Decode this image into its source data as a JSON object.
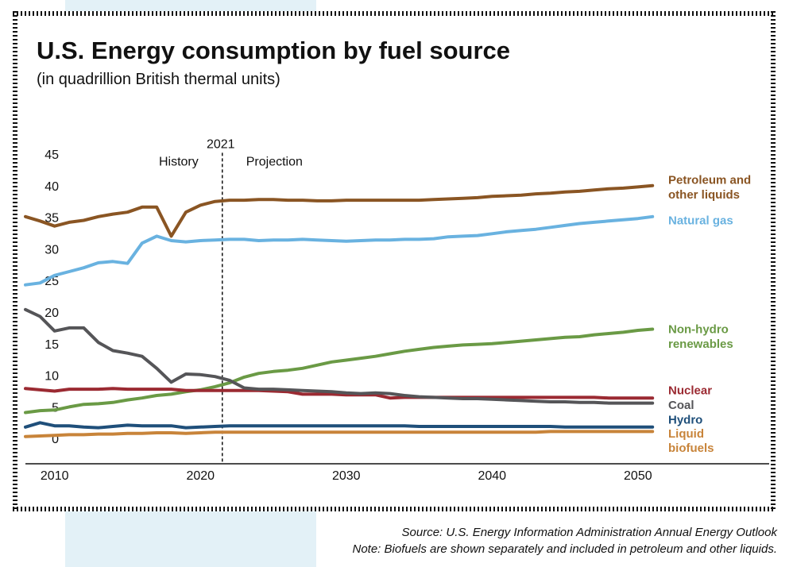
{
  "title": "U.S. Energy consumption by fuel source",
  "subtitle": "(in quadrillion British thermal units)",
  "source_note": "Source: U.S. Energy Information Administration Annual Energy Outlook",
  "biofuel_note": "Note: Biofuels are shown separately and included in petroleum and other liquids.",
  "chart_data": {
    "type": "line",
    "xlim": [
      2008,
      2059
    ],
    "ylim": [
      -4,
      46
    ],
    "yticks": [
      0,
      5,
      10,
      15,
      20,
      25,
      30,
      35,
      40,
      45
    ],
    "xticks": [
      2010,
      2020,
      2030,
      2040,
      2050
    ],
    "divider": {
      "year": 2021.5,
      "label": "2021",
      "left_label": "History",
      "right_label": "Projection"
    },
    "x": [
      2008,
      2009,
      2010,
      2011,
      2012,
      2013,
      2014,
      2015,
      2016,
      2017,
      2018,
      2019,
      2020,
      2021,
      2022,
      2023,
      2024,
      2025,
      2026,
      2027,
      2028,
      2029,
      2030,
      2031,
      2032,
      2033,
      2034,
      2035,
      2036,
      2037,
      2038,
      2039,
      2040,
      2041,
      2042,
      2043,
      2044,
      2045,
      2046,
      2047,
      2048,
      2049,
      2050,
      2051
    ],
    "series": [
      {
        "name": "Petroleum and other liquids",
        "label_lines": [
          "Petroleum and",
          "other liquids"
        ],
        "color": "#8a5523",
        "values": [
          35.1,
          34.4,
          33.6,
          34.2,
          34.5,
          35.1,
          35.5,
          35.8,
          36.6,
          36.6,
          32.0,
          35.8,
          36.9,
          37.5,
          37.7,
          37.7,
          37.8,
          37.8,
          37.7,
          37.7,
          37.6,
          37.6,
          37.7,
          37.7,
          37.7,
          37.7,
          37.7,
          37.7,
          37.8,
          37.9,
          38.0,
          38.1,
          38.3,
          38.4,
          38.5,
          38.7,
          38.8,
          39.0,
          39.1,
          39.3,
          39.5,
          39.6,
          39.8,
          40.0
        ]
      },
      {
        "name": "Natural gas",
        "label_lines": [
          "Natural gas"
        ],
        "color": "#69b2e0",
        "values": [
          24.3,
          24.6,
          25.8,
          26.4,
          27.0,
          27.8,
          28.0,
          27.7,
          30.9,
          32.0,
          31.3,
          31.1,
          31.3,
          31.4,
          31.5,
          31.5,
          31.3,
          31.4,
          31.4,
          31.5,
          31.4,
          31.3,
          31.2,
          31.3,
          31.4,
          31.4,
          31.5,
          31.5,
          31.6,
          31.9,
          32.0,
          32.1,
          32.4,
          32.7,
          32.9,
          33.1,
          33.4,
          33.7,
          34.0,
          34.2,
          34.4,
          34.6,
          34.8,
          35.1
        ]
      },
      {
        "name": "Non-hydro renewables",
        "label_lines": [
          "Non-hydro",
          "renewables"
        ],
        "color": "#6a9a45",
        "values": [
          4.1,
          4.4,
          4.5,
          5.0,
          5.4,
          5.5,
          5.7,
          6.1,
          6.4,
          6.8,
          7.0,
          7.4,
          7.7,
          8.2,
          8.8,
          9.7,
          10.3,
          10.6,
          10.8,
          11.1,
          11.6,
          12.1,
          12.4,
          12.7,
          13.0,
          13.4,
          13.8,
          14.1,
          14.4,
          14.6,
          14.8,
          14.9,
          15.0,
          15.2,
          15.4,
          15.6,
          15.8,
          16.0,
          16.1,
          16.4,
          16.6,
          16.8,
          17.1,
          17.3
        ]
      },
      {
        "name": "Nuclear",
        "label_lines": [
          "Nuclear"
        ],
        "color": "#9b2a32",
        "values": [
          7.9,
          7.7,
          7.5,
          7.8,
          7.8,
          7.8,
          7.9,
          7.8,
          7.8,
          7.8,
          7.8,
          7.6,
          7.6,
          7.6,
          7.6,
          7.6,
          7.6,
          7.5,
          7.4,
          7.0,
          7.0,
          7.0,
          6.9,
          6.9,
          6.9,
          6.4,
          6.5,
          6.5,
          6.5,
          6.5,
          6.5,
          6.5,
          6.5,
          6.5,
          6.5,
          6.5,
          6.5,
          6.5,
          6.5,
          6.5,
          6.4,
          6.4,
          6.4,
          6.4
        ]
      },
      {
        "name": "Coal",
        "label_lines": [
          "Coal"
        ],
        "color": "#555558",
        "values": [
          20.4,
          19.3,
          17.0,
          17.5,
          17.5,
          15.2,
          13.9,
          13.5,
          13.0,
          11.1,
          8.9,
          10.2,
          10.1,
          9.8,
          9.2,
          8.0,
          7.8,
          7.8,
          7.7,
          7.6,
          7.5,
          7.4,
          7.2,
          7.1,
          7.2,
          7.1,
          6.8,
          6.6,
          6.5,
          6.4,
          6.3,
          6.3,
          6.2,
          6.1,
          6.0,
          5.9,
          5.8,
          5.8,
          5.7,
          5.7,
          5.6,
          5.6,
          5.6,
          5.6
        ]
      },
      {
        "name": "Hydro",
        "label_lines": [
          "Hydro"
        ],
        "color": "#1f4f7a",
        "values": [
          1.8,
          2.5,
          2.0,
          2.0,
          1.8,
          1.7,
          1.9,
          2.1,
          2.0,
          2.0,
          2.0,
          1.7,
          1.8,
          1.9,
          2.0,
          2.0,
          2.0,
          2.0,
          2.0,
          2.0,
          2.0,
          2.0,
          2.0,
          2.0,
          2.0,
          2.0,
          2.0,
          1.9,
          1.9,
          1.9,
          1.9,
          1.9,
          1.9,
          1.9,
          1.9,
          1.9,
          1.9,
          1.8,
          1.8,
          1.8,
          1.8,
          1.8,
          1.8,
          1.8
        ]
      },
      {
        "name": "Liquid biofuels",
        "label_lines": [
          "Liquid",
          "biofuels"
        ],
        "color": "#c8843a",
        "values": [
          0.3,
          0.4,
          0.5,
          0.6,
          0.6,
          0.7,
          0.7,
          0.8,
          0.8,
          0.9,
          0.9,
          0.8,
          0.9,
          1.0,
          1.0,
          1.0,
          1.0,
          1.0,
          1.0,
          1.0,
          1.0,
          1.0,
          1.0,
          1.0,
          1.0,
          1.0,
          1.0,
          1.0,
          1.0,
          1.0,
          1.0,
          1.0,
          1.0,
          1.0,
          1.0,
          1.0,
          1.1,
          1.1,
          1.1,
          1.1,
          1.1,
          1.1,
          1.1,
          1.1
        ]
      }
    ]
  }
}
